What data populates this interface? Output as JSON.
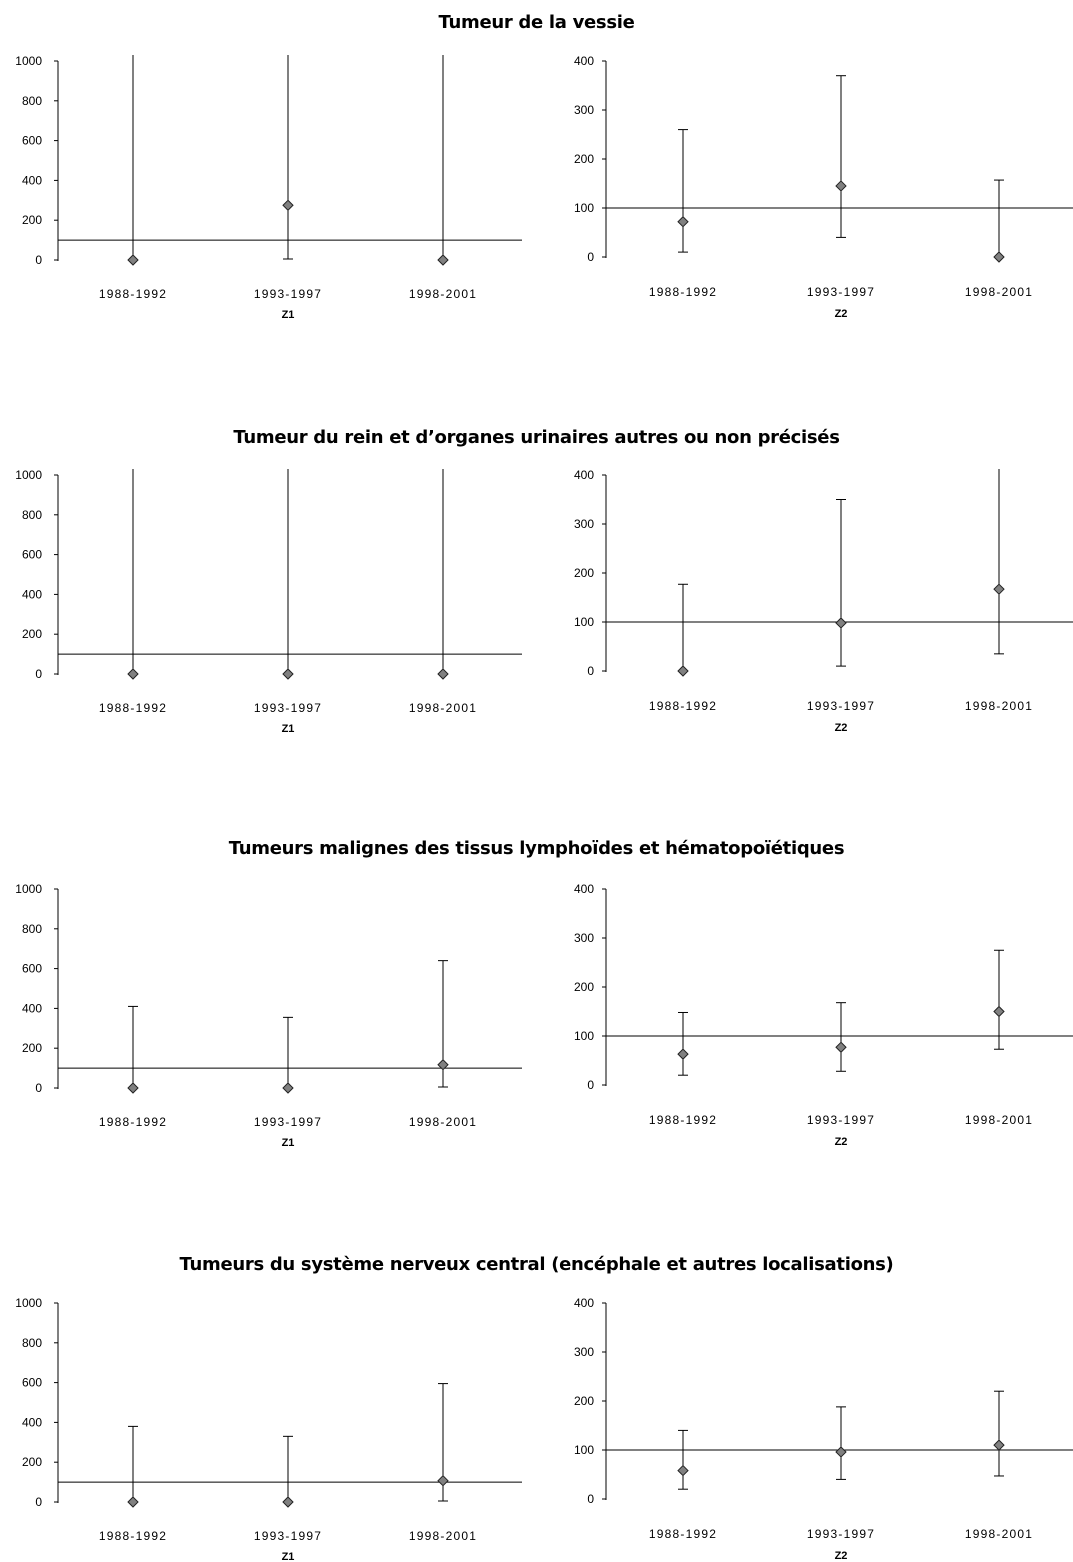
{
  "sections": [
    {
      "title": "Tumeur de la vessie",
      "charts": [
        {
          "panel": "Z1",
          "ymax_axis": 1000,
          "ref": 100,
          "categories": [
            "1988-1992",
            "1993-1997",
            "1998-2001"
          ],
          "points": [
            0,
            275,
            0
          ],
          "lower": [
            0,
            5,
            0
          ],
          "upper": [
            1000,
            1000,
            1000
          ]
        },
        {
          "panel": "Z2",
          "ymax_axis": 400,
          "ref": 100,
          "categories": [
            "1988-1992",
            "1993-1997",
            "1998-2001"
          ],
          "points": [
            72,
            145,
            0
          ],
          "lower": [
            10,
            40,
            0
          ],
          "upper": [
            260,
            370,
            157
          ]
        }
      ]
    },
    {
      "title": "Tumeur du rein et d’organes urinaires autres ou non précisés",
      "charts": [
        {
          "panel": "Z1",
          "ymax_axis": 1000,
          "ref": 100,
          "categories": [
            "1988-1992",
            "1993-1997",
            "1998-2001"
          ],
          "points": [
            0,
            0,
            0
          ],
          "lower": [
            0,
            0,
            0
          ],
          "upper": [
            1000,
            1000,
            1000
          ]
        },
        {
          "panel": "Z2",
          "ymax_axis": 400,
          "ref": 100,
          "categories": [
            "1988-1992",
            "1993-1997",
            "1998-2001"
          ],
          "points": [
            0,
            98,
            167
          ],
          "lower": [
            0,
            10,
            35
          ],
          "upper": [
            177,
            350,
            400
          ]
        }
      ]
    },
    {
      "title": "Tumeurs malignes des tissus lymphoïdes et hématopoïétiques",
      "charts": [
        {
          "panel": "Z1",
          "ymax_axis": 1000,
          "ref": 100,
          "categories": [
            "1988-1992",
            "1993-1997",
            "1998-2001"
          ],
          "points": [
            0,
            0,
            117
          ],
          "lower": [
            0,
            0,
            5
          ],
          "upper": [
            410,
            355,
            640
          ]
        },
        {
          "panel": "Z2",
          "ymax_axis": 400,
          "ref": 100,
          "categories": [
            "1988-1992",
            "1993-1997",
            "1998-2001"
          ],
          "points": [
            63,
            77,
            150
          ],
          "lower": [
            20,
            28,
            73
          ],
          "upper": [
            148,
            168,
            275
          ]
        }
      ]
    },
    {
      "title": "Tumeurs du système nerveux central (encéphale et autres localisations)",
      "charts": [
        {
          "panel": "Z1",
          "ymax_axis": 1000,
          "ref": 100,
          "categories": [
            "1988-1992",
            "1993-1997",
            "1998-2001"
          ],
          "points": [
            0,
            0,
            107
          ],
          "lower": [
            0,
            0,
            5
          ],
          "upper": [
            380,
            330,
            595
          ]
        },
        {
          "panel": "Z2",
          "ymax_axis": 400,
          "ref": 100,
          "categories": [
            "1988-1992",
            "1993-1997",
            "1998-2001"
          ],
          "points": [
            58,
            96,
            110
          ],
          "lower": [
            20,
            40,
            47
          ],
          "upper": [
            140,
            188,
            220
          ]
        }
      ]
    }
  ],
  "chart_data": [
    {
      "type": "scatter",
      "section": "Tumeur de la vessie",
      "xlabel": "Z1",
      "categories": [
        "1988-1992",
        "1993-1997",
        "1998-2001"
      ],
      "ylim": [
        0,
        1000
      ],
      "yticks": [
        0,
        200,
        400,
        600,
        800,
        1000
      ],
      "values": [
        0,
        275,
        0
      ],
      "ci_lower": [
        0,
        5,
        0
      ],
      "ci_upper": [
        1000,
        1000,
        1000
      ],
      "reference_line": 100,
      "marker": "diamond",
      "marker_color": "#808080"
    },
    {
      "type": "scatter",
      "section": "Tumeur de la vessie",
      "xlabel": "Z2",
      "categories": [
        "1988-1992",
        "1993-1997",
        "1998-2001"
      ],
      "ylim": [
        0,
        400
      ],
      "yticks": [
        0,
        100,
        200,
        300,
        400
      ],
      "values": [
        72,
        145,
        0
      ],
      "ci_lower": [
        10,
        40,
        0
      ],
      "ci_upper": [
        260,
        370,
        157
      ],
      "reference_line": 100,
      "marker": "diamond",
      "marker_color": "#808080"
    },
    {
      "type": "scatter",
      "section": "Tumeur du rein et d’organes urinaires autres ou non précisés",
      "xlabel": "Z1",
      "categories": [
        "1988-1992",
        "1993-1997",
        "1998-2001"
      ],
      "ylim": [
        0,
        1000
      ],
      "yticks": [
        0,
        200,
        400,
        600,
        800,
        1000
      ],
      "values": [
        0,
        0,
        0
      ],
      "ci_lower": [
        0,
        0,
        0
      ],
      "ci_upper": [
        1000,
        1000,
        1000
      ],
      "reference_line": 100,
      "marker": "diamond",
      "marker_color": "#808080"
    },
    {
      "type": "scatter",
      "section": "Tumeur du rein et d’organes urinaires autres ou non précisés",
      "xlabel": "Z2",
      "categories": [
        "1988-1992",
        "1993-1997",
        "1998-2001"
      ],
      "ylim": [
        0,
        400
      ],
      "yticks": [
        0,
        100,
        200,
        300,
        400
      ],
      "values": [
        0,
        98,
        167
      ],
      "ci_lower": [
        0,
        10,
        35
      ],
      "ci_upper": [
        177,
        350,
        400
      ],
      "reference_line": 100,
      "marker": "diamond",
      "marker_color": "#808080"
    },
    {
      "type": "scatter",
      "section": "Tumeurs malignes des tissus lymphoïdes et hématopoïétiques",
      "xlabel": "Z1",
      "categories": [
        "1988-1992",
        "1993-1997",
        "1998-2001"
      ],
      "ylim": [
        0,
        1000
      ],
      "yticks": [
        0,
        200,
        400,
        600,
        800,
        1000
      ],
      "values": [
        0,
        0,
        117
      ],
      "ci_lower": [
        0,
        0,
        5
      ],
      "ci_upper": [
        410,
        355,
        640
      ],
      "reference_line": 100,
      "marker": "diamond",
      "marker_color": "#808080"
    },
    {
      "type": "scatter",
      "section": "Tumeurs malignes des tissus lymphoïdes et hématopoïétiques",
      "xlabel": "Z2",
      "categories": [
        "1988-1992",
        "1993-1997",
        "1998-2001"
      ],
      "ylim": [
        0,
        400
      ],
      "yticks": [
        0,
        100,
        200,
        300,
        400
      ],
      "values": [
        63,
        77,
        150
      ],
      "ci_lower": [
        20,
        28,
        73
      ],
      "ci_upper": [
        148,
        168,
        275
      ],
      "reference_line": 100,
      "marker": "diamond",
      "marker_color": "#808080"
    },
    {
      "type": "scatter",
      "section": "Tumeurs du système nerveux central (encéphale et autres localisations)",
      "xlabel": "Z1",
      "categories": [
        "1988-1992",
        "1993-1997",
        "1998-2001"
      ],
      "ylim": [
        0,
        1000
      ],
      "yticks": [
        0,
        200,
        400,
        600,
        800,
        1000
      ],
      "values": [
        0,
        0,
        107
      ],
      "ci_lower": [
        0,
        0,
        5
      ],
      "ci_upper": [
        380,
        330,
        595
      ],
      "reference_line": 100,
      "marker": "diamond",
      "marker_color": "#808080"
    },
    {
      "type": "scatter",
      "section": "Tumeurs du système nerveux central (encéphale et autres localisations)",
      "xlabel": "Z2",
      "categories": [
        "1988-1992",
        "1993-1997",
        "1998-2001"
      ],
      "ylim": [
        0,
        400
      ],
      "yticks": [
        0,
        100,
        200,
        300,
        400
      ],
      "values": [
        58,
        96,
        110
      ],
      "ci_lower": [
        20,
        40,
        47
      ],
      "ci_upper": [
        140,
        188,
        220
      ],
      "reference_line": 100,
      "marker": "diamond",
      "marker_color": "#808080"
    }
  ],
  "colors": {
    "marker_fill": "#808080",
    "line": "#000000"
  }
}
